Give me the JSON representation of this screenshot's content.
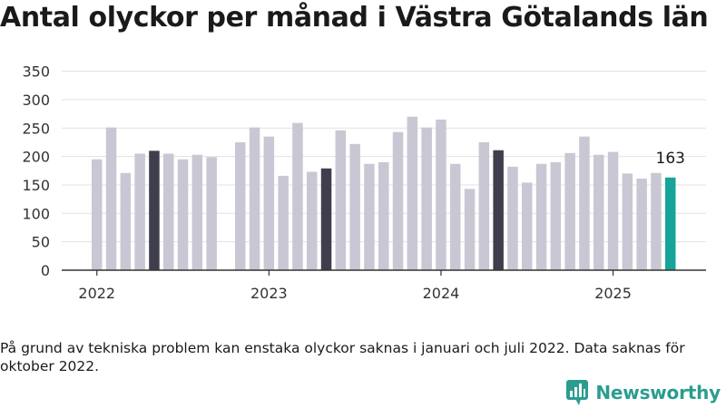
{
  "header": {
    "title": "Antal olyckor per månad i Västra Götalands län"
  },
  "footer": {
    "note": "På grund av tekniska problem kan enstaka olyckor saknas i januari och juli 2022. Data saknas för oktober 2022.",
    "brand": "Newsworthy"
  },
  "colors": {
    "bar": "#c8c7d3",
    "bar_highlight": "#3f3e4c",
    "bar_latest": "#17a398",
    "brand": "#2a9d8f",
    "axis": "#333333",
    "grid": "#e2e2e2"
  },
  "chart_data": {
    "type": "bar",
    "title": "Antal olyckor per månad i Västra Götalands län",
    "xlabel": "",
    "ylabel": "",
    "ylim": [
      0,
      350
    ],
    "yticks": [
      0,
      50,
      100,
      150,
      200,
      250,
      300,
      350
    ],
    "xtick_labels": [
      "2022",
      "2023",
      "2024",
      "2025"
    ],
    "grid": true,
    "highlighted_months": [
      "2022-05",
      "2023-05",
      "2024-05"
    ],
    "latest_month": "2025-05",
    "annotations": [
      {
        "month": "2025-05",
        "text": "163"
      }
    ],
    "months": [
      "2022-01",
      "2022-02",
      "2022-03",
      "2022-04",
      "2022-05",
      "2022-06",
      "2022-07",
      "2022-08",
      "2022-09",
      "2022-10",
      "2022-11",
      "2022-12",
      "2023-01",
      "2023-02",
      "2023-03",
      "2023-04",
      "2023-05",
      "2023-06",
      "2023-07",
      "2023-08",
      "2023-09",
      "2023-10",
      "2023-11",
      "2023-12",
      "2024-01",
      "2024-02",
      "2024-03",
      "2024-04",
      "2024-05",
      "2024-06",
      "2024-07",
      "2024-08",
      "2024-09",
      "2024-10",
      "2024-11",
      "2024-12",
      "2025-01",
      "2025-02",
      "2025-03",
      "2025-04",
      "2025-05"
    ],
    "values": [
      195,
      251,
      171,
      205,
      210,
      205,
      195,
      203,
      199,
      null,
      225,
      251,
      235,
      166,
      259,
      173,
      179,
      246,
      222,
      187,
      190,
      243,
      270,
      251,
      265,
      187,
      143,
      225,
      211,
      182,
      154,
      187,
      190,
      206,
      235,
      203,
      208,
      170,
      161,
      171,
      163
    ]
  }
}
